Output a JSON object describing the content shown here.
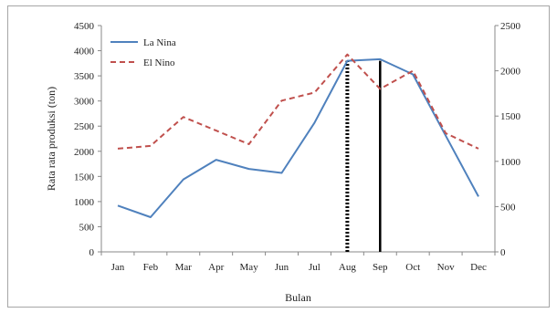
{
  "chart_data": {
    "type": "line",
    "title": "",
    "xlabel": "Bulan",
    "ylabel": "Rata rata produksi (ton)",
    "categories": [
      "Jan",
      "Feb",
      "Mar",
      "Apr",
      "May",
      "Jun",
      "Jul",
      "Aug",
      "Sep",
      "Oct",
      "Nov",
      "Dec"
    ],
    "ylim": [
      0,
      4500
    ],
    "y_ticks": [
      0,
      500,
      1000,
      1500,
      2000,
      2500,
      3000,
      3500,
      4000,
      4500
    ],
    "y2lim": [
      0,
      2500
    ],
    "y2_ticks": [
      0,
      500,
      1000,
      1500,
      2000,
      2500
    ],
    "grid": false,
    "legend_position": "top-left",
    "series": [
      {
        "name": "La Nina",
        "axis": "left",
        "color": "#4f81bd",
        "style": "solid",
        "values": [
          920,
          690,
          1440,
          1830,
          1650,
          1570,
          2570,
          3800,
          3830,
          3530,
          2310,
          1100
        ]
      },
      {
        "name": "El Nino",
        "axis": "right",
        "color": "#c0504d",
        "style": "dashed",
        "values": [
          1140,
          1170,
          1490,
          1340,
          1190,
          1670,
          1760,
          2180,
          1800,
          2000,
          1310,
          1140
        ]
      }
    ],
    "markers": [
      {
        "category": "Aug",
        "style": "dotted",
        "color": "#000000",
        "value": 3800
      },
      {
        "category": "Sep",
        "style": "solid",
        "color": "#000000",
        "value": 3800
      }
    ]
  }
}
